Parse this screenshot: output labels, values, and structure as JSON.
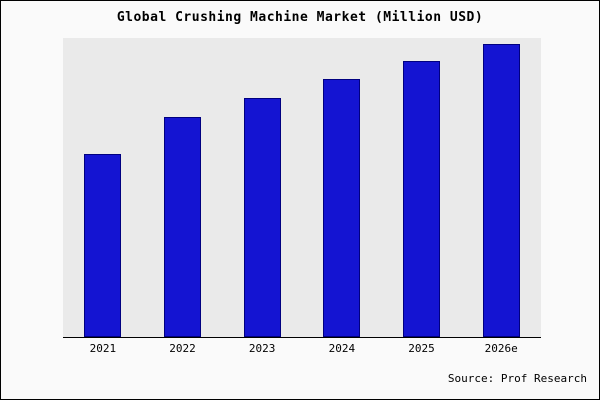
{
  "chart_data": {
    "type": "bar",
    "title": "Global Crushing Machine Market (Million USD)",
    "categories": [
      "2021",
      "2022",
      "2023",
      "2024",
      "2025",
      "2026e"
    ],
    "values": [
      62.5,
      75,
      81.5,
      88,
      94,
      100
    ],
    "ylim": [
      0,
      102
    ],
    "xlabel": "",
    "ylabel": "",
    "grid": false,
    "legend": "none",
    "y_axis_tick_labels_visible": false,
    "bar_color": "#1414d2",
    "bar_edge_color": "#000080",
    "plot_background": "#eaeaea",
    "figure_background": "#fafafa"
  },
  "source": "Source: Prof Research"
}
